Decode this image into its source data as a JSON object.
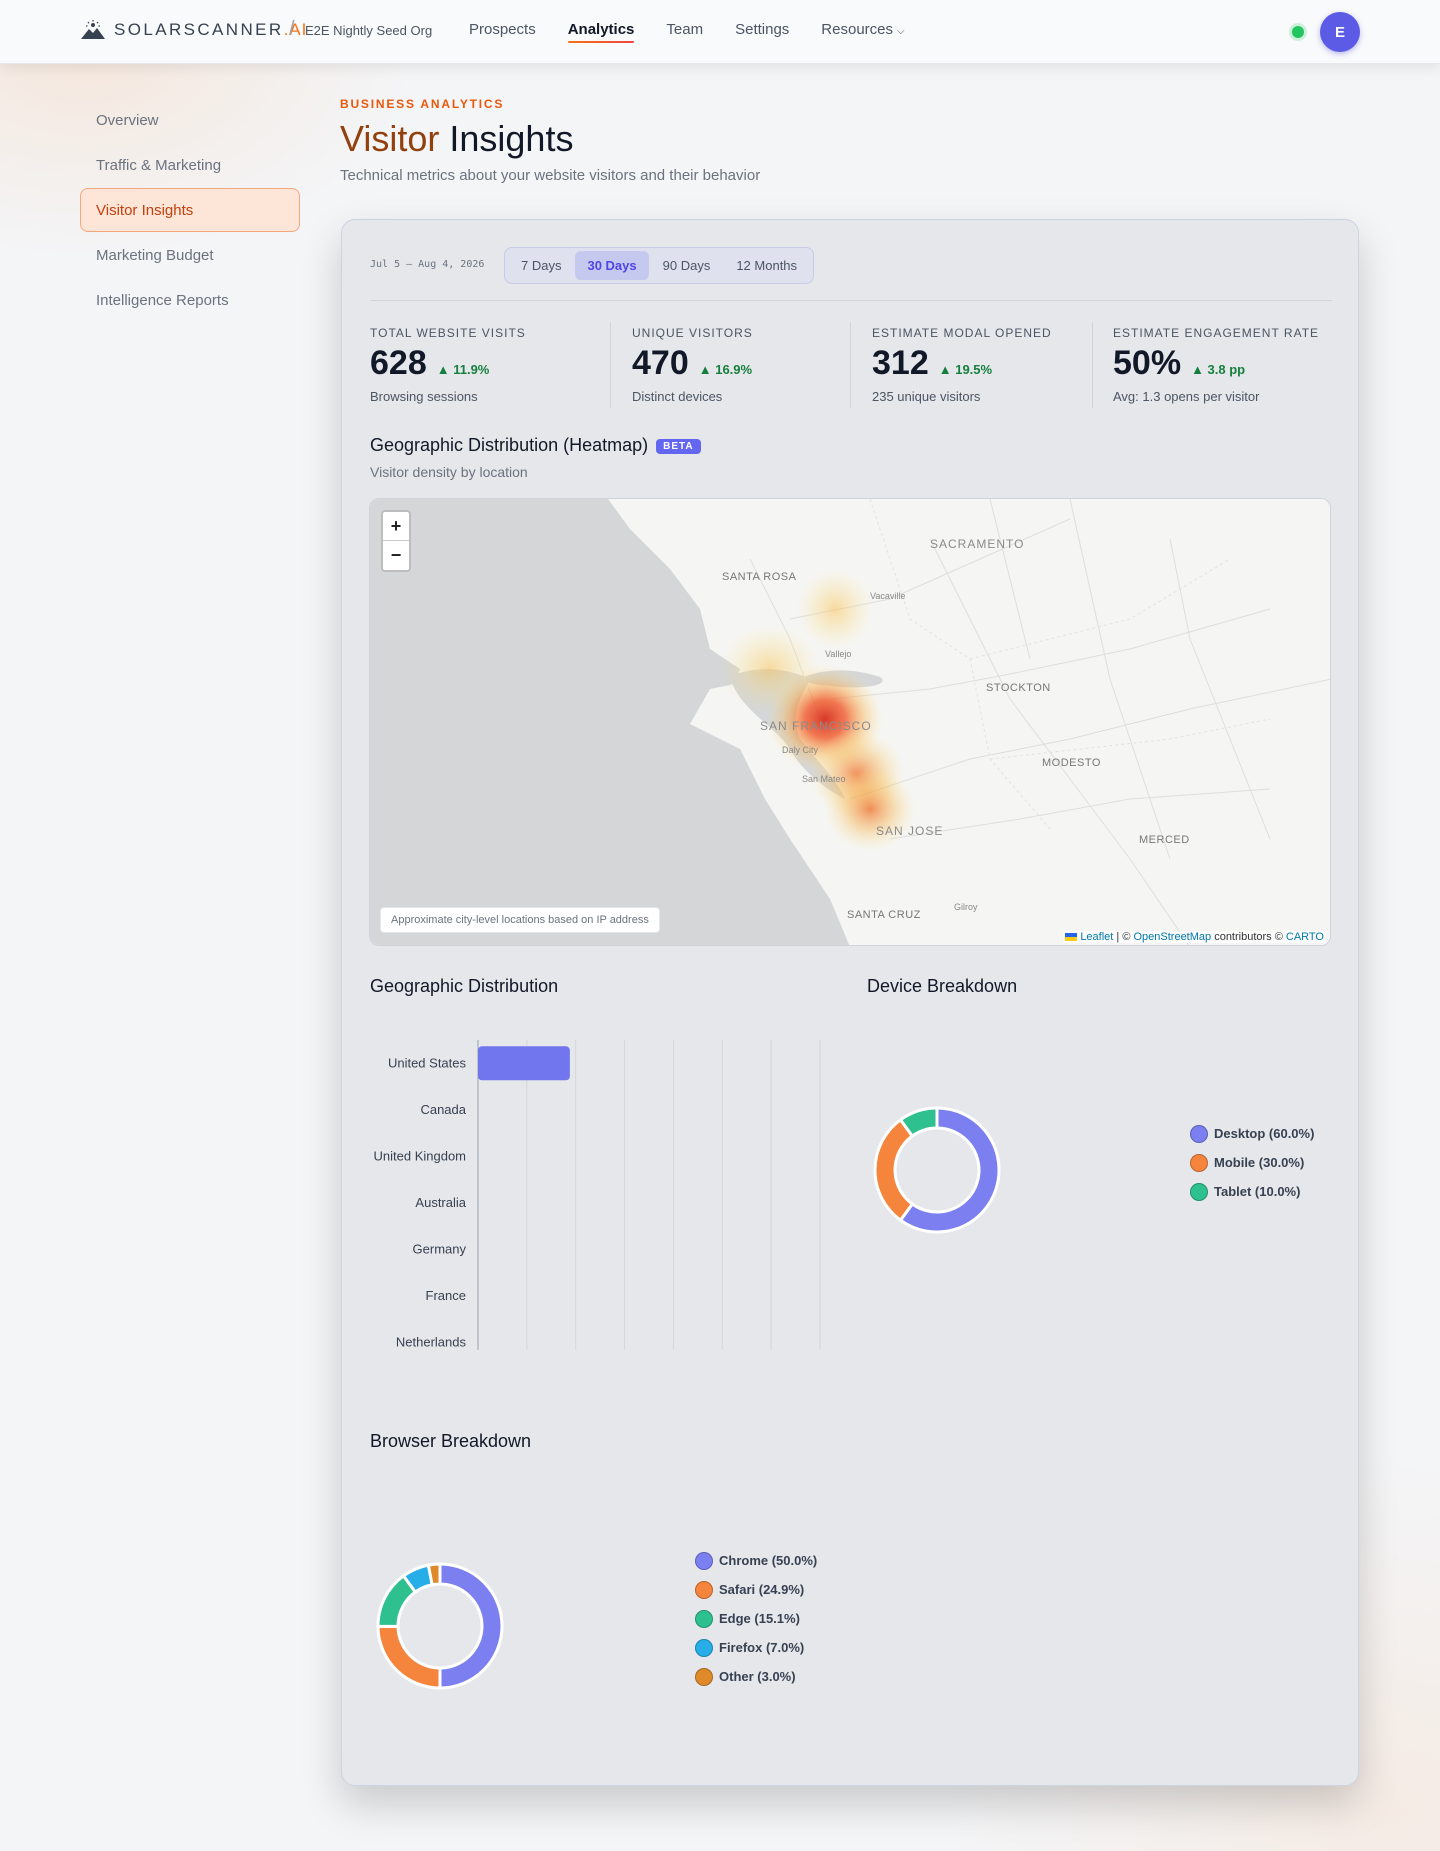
{
  "header": {
    "brand": "SOLARSCANNER",
    "brand_suffix": ".AI",
    "org": "E2E Nightly Seed Org",
    "nav": [
      {
        "label": "Prospects",
        "active": false
      },
      {
        "label": "Analytics",
        "active": true
      },
      {
        "label": "Team",
        "active": false
      },
      {
        "label": "Settings",
        "active": false
      },
      {
        "label": "Resources",
        "active": false
      }
    ],
    "avatar_initial": "E"
  },
  "sidebar": {
    "items": [
      {
        "label": "Overview",
        "active": false
      },
      {
        "label": "Traffic & Marketing",
        "active": false
      },
      {
        "label": "Visitor Insights",
        "active": true
      },
      {
        "label": "Marketing Budget",
        "active": false
      },
      {
        "label": "Intelligence Reports",
        "active": false
      }
    ]
  },
  "page": {
    "eyebrow": "BUSINESS ANALYTICS",
    "title_word1": "Visitor",
    "title_word2": "Insights",
    "subtitle": "Technical metrics about your website visitors and their behavior"
  },
  "filters": {
    "date_range": "Jul 5 – Aug 4, 2026",
    "tabs": [
      "7 Days",
      "30 Days",
      "90 Days",
      "12 Months"
    ],
    "active_tab": "30 Days"
  },
  "kpis": [
    {
      "label": "TOTAL WEBSITE VISITS",
      "value": "628",
      "delta": "11.9%",
      "note": "Browsing sessions"
    },
    {
      "label": "UNIQUE VISITORS",
      "value": "470",
      "delta": "16.9%",
      "note": "Distinct devices"
    },
    {
      "label": "ESTIMATE MODAL OPENED",
      "value": "312",
      "delta": "19.5%",
      "note": "235 unique visitors"
    },
    {
      "label": "ESTIMATE ENGAGEMENT RATE",
      "value": "50%",
      "delta": "3.8 pp",
      "note": "Avg: 1.3 opens per visitor"
    }
  ],
  "heatmap": {
    "title": "Geographic Distribution (Heatmap)",
    "badge": "BETA",
    "subtitle": "Visitor density by location",
    "zoom_in": "+",
    "zoom_out": "−",
    "note": "Approximate city-level locations based on IP address",
    "attribution": {
      "leaflet": "Leaflet",
      "sep": " | © ",
      "osm": "OpenStreetMap",
      "contrib": " contributors © ",
      "carto": "CARTO"
    },
    "cities": {
      "sacramento": "SACRAMENTO",
      "santa_rosa": "SANTA ROSA",
      "vacaville": "Vacaville",
      "vallejo": "Vallejo",
      "stockton": "STOCKTON",
      "san_francisco": "SAN FRANCISCO",
      "daly_city": "Daly City",
      "san_mateo": "San Mateo",
      "modesto": "MODESTO",
      "san_jose": "SAN JOSE",
      "merced": "MERCED",
      "santa_cruz": "SANTA CRUZ",
      "gilroy": "Gilroy"
    }
  },
  "geo_chart_title": "Geographic Distribution",
  "device_chart_title": "Device Breakdown",
  "browser_chart_title": "Browser Breakdown",
  "chart_data": [
    {
      "type": "bar",
      "orientation": "horizontal",
      "categories": [
        "United States",
        "Canada",
        "United Kingdom",
        "Australia",
        "Germany",
        "France",
        "Netherlands"
      ],
      "values": [
        94,
        0,
        0,
        0,
        0,
        0,
        0
      ],
      "xlim": [
        0,
        350
      ],
      "xticks": [
        0,
        50,
        100,
        150,
        200,
        250,
        300,
        350
      ],
      "color": "#7176ee",
      "grid": "vertical"
    },
    {
      "type": "pie",
      "variant": "doughnut",
      "labels": [
        "Desktop (60.0%)",
        "Mobile (30.0%)",
        "Tablet (10.0%)"
      ],
      "values": [
        60.0,
        30.0,
        10.0
      ],
      "colors": [
        "#7b7ff0",
        "#f5843c",
        "#2ec08e"
      ],
      "legend": "right"
    },
    {
      "type": "pie",
      "variant": "doughnut",
      "labels": [
        "Chrome (50.0%)",
        "Safari (24.9%)",
        "Edge (15.1%)",
        "Firefox (7.0%)",
        "Other (3.0%)"
      ],
      "values": [
        50.0,
        24.9,
        15.1,
        7.0,
        3.0
      ],
      "colors": [
        "#7b7ff0",
        "#f5843c",
        "#2ec08e",
        "#27aee8",
        "#de8a2a"
      ],
      "legend": "right"
    }
  ]
}
